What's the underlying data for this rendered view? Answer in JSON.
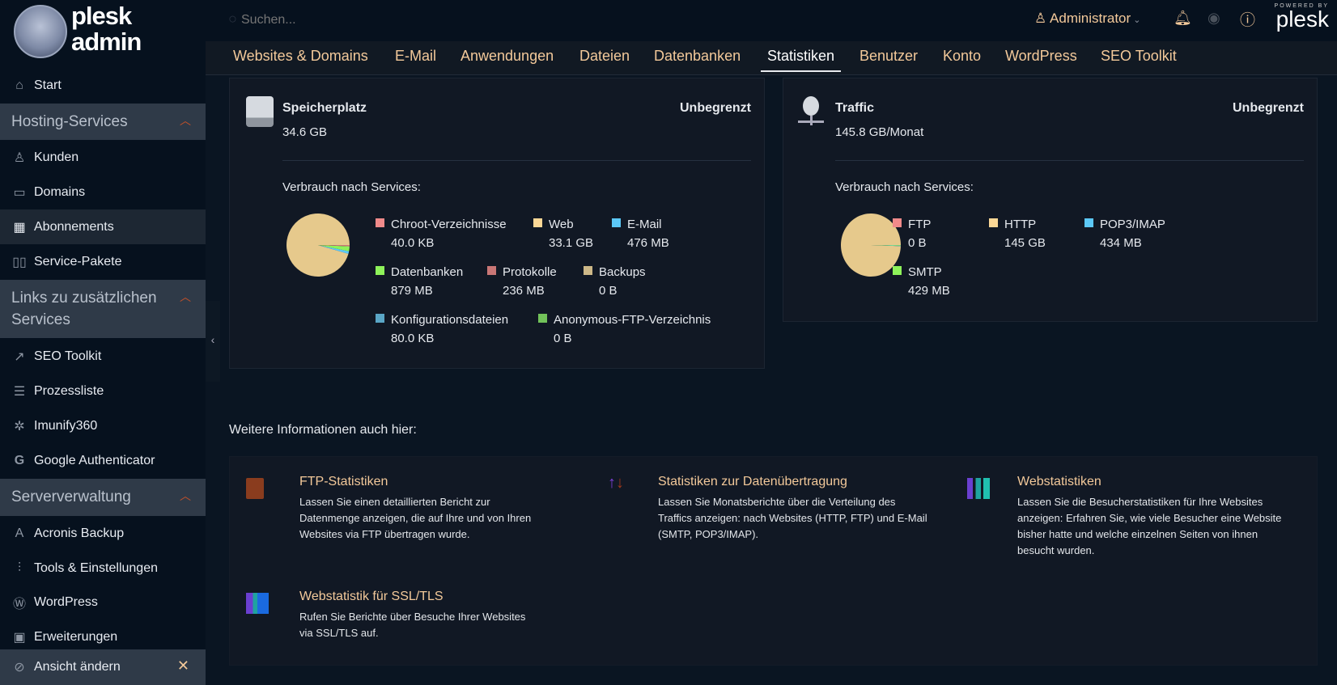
{
  "brand": {
    "logo_text_1": "plesk",
    "logo_text_2": "admin",
    "powered_by": "POWERED BY",
    "plesk_logo": "plesk"
  },
  "topbar": {
    "search_placeholder": "Suchen...",
    "user": "Administrator"
  },
  "tabs": [
    {
      "label": "Websites & Domains"
    },
    {
      "label": "E-Mail"
    },
    {
      "label": "Anwendungen"
    },
    {
      "label": "Dateien"
    },
    {
      "label": "Datenbanken"
    },
    {
      "label": "Statistiken",
      "active": true
    },
    {
      "label": "Benutzer"
    },
    {
      "label": "Konto"
    },
    {
      "label": "WordPress"
    },
    {
      "label": "SEO Toolkit"
    }
  ],
  "sidebar": {
    "start": "Start",
    "groups": [
      {
        "title": "Hosting-Services",
        "items": [
          "Kunden",
          "Domains",
          "Abonnements",
          "Service-Pakete"
        ]
      },
      {
        "title": "Links zu zusätzlichen Services",
        "items": [
          "SEO Toolkit",
          "Prozessliste",
          "Imunify360",
          "Google Authenticator"
        ]
      },
      {
        "title": "Serververwaltung",
        "items": [
          "Acronis Backup",
          "Tools & Einstellungen",
          "WordPress",
          "Erweiterungen"
        ]
      }
    ],
    "active_item": "Abonnements",
    "change_view": "Ansicht ändern"
  },
  "storage": {
    "title": "Speicherplatz",
    "value": "34.6 GB",
    "limit": "Unbegrenzt",
    "subtitle": "Verbrauch nach Services:",
    "legend": [
      {
        "label": "Chroot-Verzeichnisse",
        "value": "40.0 KB",
        "color": "#f08a8a",
        "mb": 0.04
      },
      {
        "label": "Web",
        "value": "33.1 GB",
        "color": "#fbd796",
        "mb": 33894
      },
      {
        "label": "E-Mail",
        "value": "476 MB",
        "color": "#5cc8f7",
        "mb": 476
      },
      {
        "label": "Datenbanken",
        "value": "879 MB",
        "color": "#8ef25a",
        "mb": 879
      },
      {
        "label": "Protokolle",
        "value": "236 MB",
        "color": "#c97676",
        "mb": 236
      },
      {
        "label": "Backups",
        "value": "0 B",
        "color": "#cdb888",
        "mb": 0
      },
      {
        "label": "Konfigurationsdateien",
        "value": "80.0 KB",
        "color": "#5aa6c6",
        "mb": 0.08
      },
      {
        "label": "Anonymous-FTP-Verzeichnis",
        "value": "0 B",
        "color": "#72c25a",
        "mb": 0
      }
    ]
  },
  "traffic": {
    "title": "Traffic",
    "value": "145.8 GB/Monat",
    "limit": "Unbegrenzt",
    "subtitle": "Verbrauch nach Services:",
    "legend": [
      {
        "label": "FTP",
        "value": "0 B",
        "color": "#f08a8a",
        "mb": 0
      },
      {
        "label": "HTTP",
        "value": "145 GB",
        "color": "#fbd796",
        "mb": 148480
      },
      {
        "label": "POP3/IMAP",
        "value": "434 MB",
        "color": "#5cc8f7",
        "mb": 434
      },
      {
        "label": "SMTP",
        "value": "429 MB",
        "color": "#8ef25a",
        "mb": 429
      }
    ]
  },
  "more": {
    "heading": "Weitere Informationen auch hier:",
    "items": [
      {
        "title": "FTP-Statistiken",
        "desc": "Lassen Sie einen detaillierten Bericht zur Datenmenge anzeigen, die auf Ihre und von Ihren Websites via FTP übertragen wurde."
      },
      {
        "title": "Statistiken zur Datenübertragung",
        "desc": "Lassen Sie Monatsberichte über die Verteilung des Traffics anzeigen: nach Websites (HTTP, FTP) und E-Mail (SMTP, POP3/IMAP)."
      },
      {
        "title": "Webstatistiken",
        "desc": "Lassen Sie die Besucherstatistiken für Ihre Websites anzeigen: Erfahren Sie, wie viele Besucher eine Website bisher hatte und welche einzelnen Seiten von ihnen besucht wurden."
      },
      {
        "title": "Webstatistik für SSL/TLS",
        "desc": "Rufen Sie Berichte über Besuche Ihrer Websites via SSL/TLS auf."
      }
    ]
  }
}
